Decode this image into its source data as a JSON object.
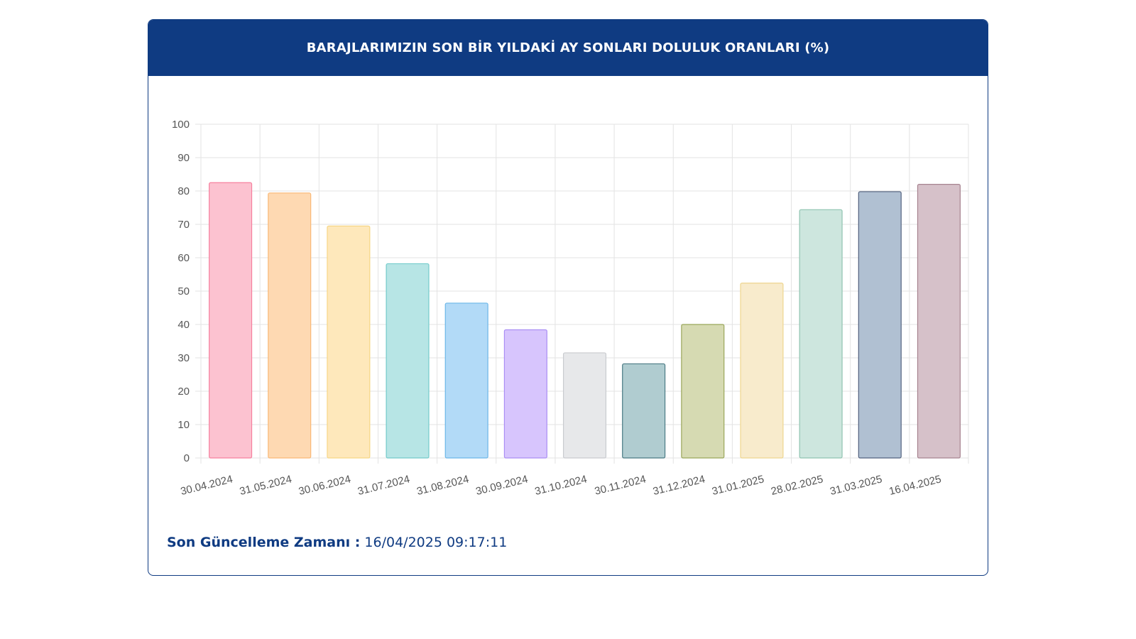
{
  "card": {
    "title": "BARAJLARIMIZIN SON BİR YILDAKİ AY SONLARI DOLULUK ORANLARI (%)",
    "update_label": "Son Güncelleme Zamanı :",
    "update_value": "16/04/2025 09:17:11"
  },
  "colors": {
    "header": "#0f3b82",
    "grid": "#e3e3e3",
    "tick_text": "#555555"
  },
  "chart_data": {
    "type": "bar",
    "title": "BARAJLARIMIZIN SON BİR YILDAKİ AY SONLARI DOLULUK ORANLARI (%)",
    "categories": [
      "30.04.2024",
      "31.05.2024",
      "30.06.2024",
      "31.07.2024",
      "31.08.2024",
      "30.09.2024",
      "31.10.2024",
      "30.11.2024",
      "31.12.2024",
      "31.01.2025",
      "28.02.2025",
      "31.03.2025",
      "16.04.2025"
    ],
    "values": [
      82.5,
      79.4,
      69.5,
      58.2,
      46.4,
      38.4,
      31.5,
      28.2,
      40.0,
      52.4,
      74.4,
      79.8,
      82.0
    ],
    "ylim": [
      0,
      100
    ],
    "yticks": [
      0,
      10,
      20,
      30,
      40,
      50,
      60,
      70,
      80,
      90,
      100
    ],
    "grid": true,
    "bar_fills": [
      "#fcc2d0",
      "#fed9b2",
      "#fee8bb",
      "#b7e5e5",
      "#b2daf7",
      "#d7c5fd",
      "#e7e8ea",
      "#b0ccd0",
      "#d6dab2",
      "#f8ebcc",
      "#cde6de",
      "#b0c0d2",
      "#d6c1c9"
    ],
    "bar_strokes": [
      "#f6809e",
      "#f9b876",
      "#f6d685",
      "#73cbcb",
      "#6cb6e8",
      "#aa8ef4",
      "#c9cbcf",
      "#4a7a84",
      "#9aa65a",
      "#eed58f",
      "#8fc4b0",
      "#52627f",
      "#a78390"
    ]
  }
}
